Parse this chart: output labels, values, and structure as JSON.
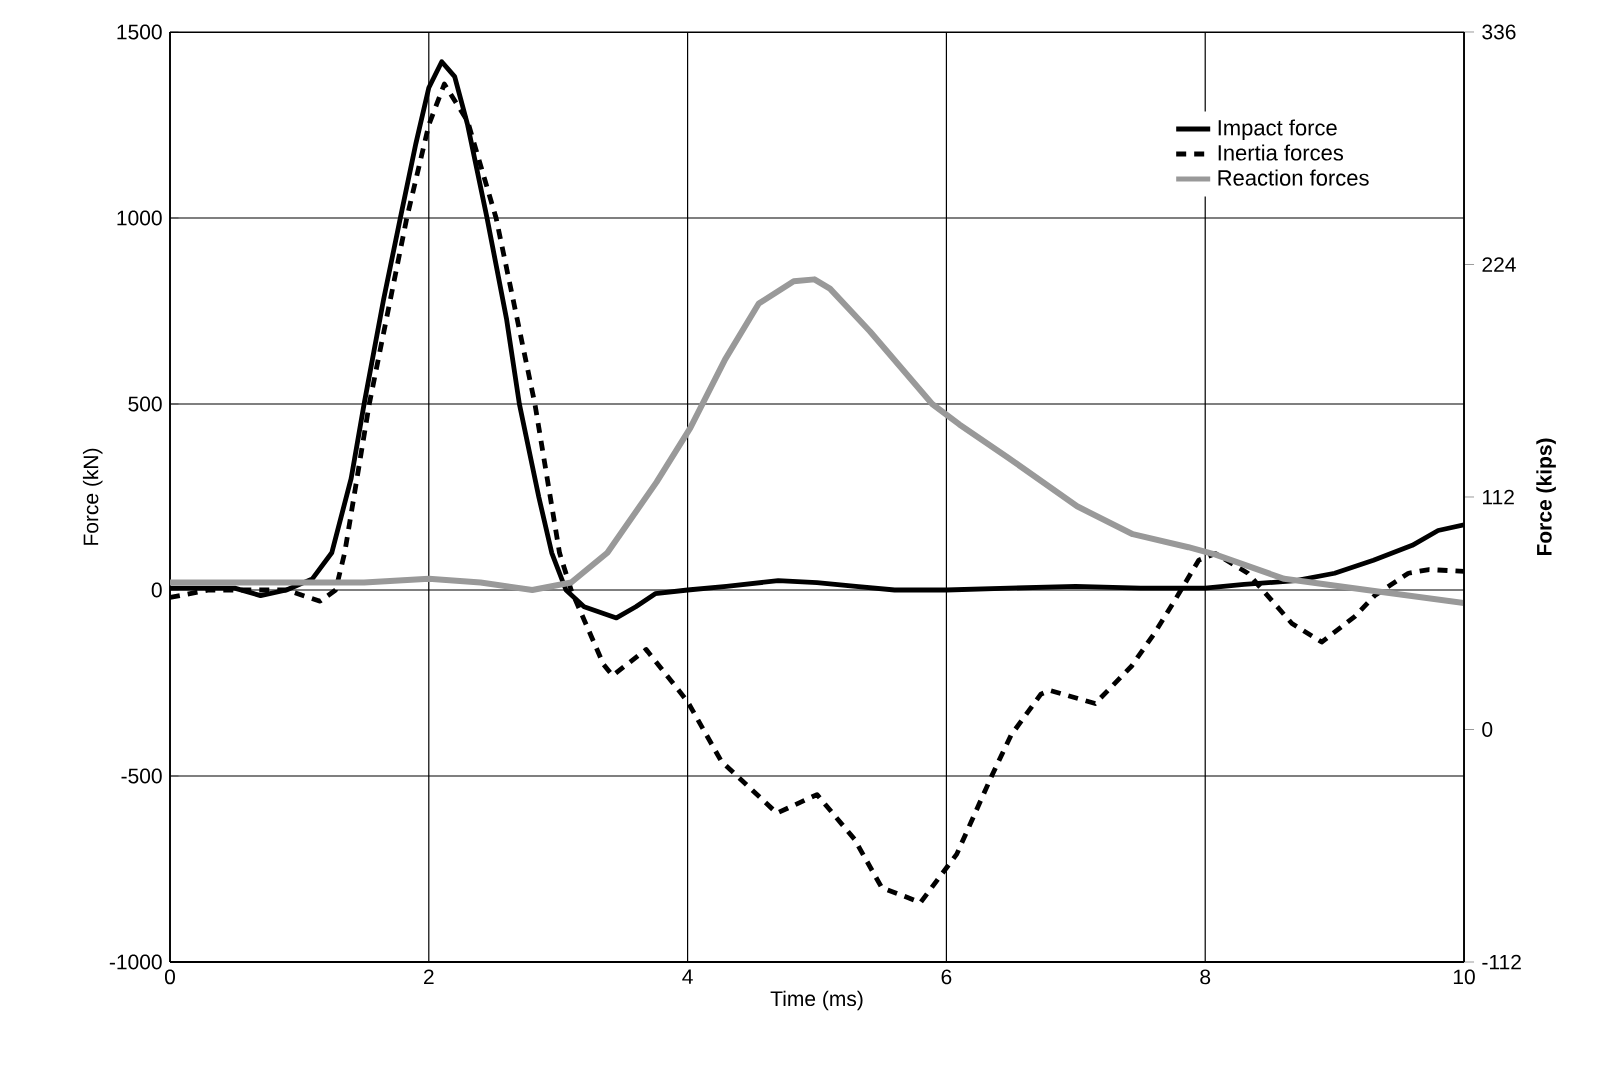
{
  "chart_data": {
    "type": "line",
    "xlabel": "Time (ms)",
    "ylabel": "Force (kN)",
    "y2label": "Force (kips)",
    "xlim": [
      0,
      10
    ],
    "xticks": [
      0,
      2,
      4,
      6,
      8,
      10
    ],
    "ylim": [
      -1000,
      1500
    ],
    "yticks": [
      -1000,
      -500,
      0,
      500,
      1000,
      1500
    ],
    "y2lim": [
      -112,
      336
    ],
    "y2ticks": [
      -112,
      0,
      112,
      224,
      336
    ],
    "grid": true,
    "legend": "top right",
    "series": [
      {
        "name": "Impact force",
        "color": "#000000",
        "line_style": "solid",
        "x": [
          0,
          0.5,
          0.7,
          0.9,
          1.1,
          1.25,
          1.4,
          1.5,
          1.65,
          1.78,
          1.9,
          2.0,
          2.1,
          2.2,
          2.3,
          2.45,
          2.6,
          2.7,
          2.85,
          2.95,
          3.06,
          3.2,
          3.45,
          3.6,
          3.75,
          4.0,
          4.3,
          4.7,
          5.0,
          5.3,
          5.6,
          6.0,
          6.5,
          7.0,
          7.5,
          8.0,
          8.3,
          8.7,
          9.0,
          9.3,
          9.6,
          9.8,
          10
        ],
        "values": [
          5,
          5,
          -15,
          0,
          30,
          100,
          300,
          500,
          780,
          1000,
          1200,
          1350,
          1420,
          1380,
          1250,
          1000,
          730,
          500,
          250,
          100,
          0,
          -45,
          -75,
          -45,
          -10,
          0,
          10,
          25,
          20,
          10,
          0,
          0,
          5,
          10,
          5,
          5,
          15,
          25,
          45,
          80,
          120,
          160,
          175
        ]
      },
      {
        "name": "Inertia forces",
        "color": "#000000",
        "line_style": "dashed",
        "x": [
          0,
          0.3,
          0.9,
          1.16,
          1.28,
          1.35,
          1.54,
          1.83,
          2.0,
          2.12,
          2.3,
          2.52,
          2.82,
          3.01,
          3.1,
          3.35,
          3.42,
          3.68,
          4.0,
          4.26,
          4.69,
          5.0,
          5.29,
          5.5,
          5.8,
          6.08,
          6.35,
          6.5,
          6.73,
          6.8,
          7.15,
          7.43,
          7.61,
          7.77,
          7.95,
          8.08,
          8.33,
          8.67,
          8.9,
          9.16,
          9.31,
          9.57,
          9.73,
          10
        ],
        "values": [
          -20,
          0,
          0,
          -30,
          0,
          100,
          500,
          1000,
          1250,
          1360,
          1260,
          1000,
          500,
          100,
          0,
          -200,
          -230,
          -160,
          -300,
          -460,
          -600,
          -550,
          -670,
          -800,
          -840,
          -710,
          -500,
          -390,
          -280,
          -270,
          -305,
          -205,
          -115,
          -25,
          80,
          98,
          45,
          -90,
          -140,
          -70,
          -15,
          45,
          55,
          50
        ]
      },
      {
        "name": "Reaction forces",
        "color": "#999999",
        "line_style": "solid",
        "x": [
          0,
          1.0,
          1.5,
          2.0,
          2.4,
          2.8,
          3.1,
          3.38,
          3.76,
          4.02,
          4.29,
          4.55,
          4.82,
          4.98,
          5.1,
          5.41,
          5.89,
          6.1,
          6.48,
          7.01,
          7.44,
          7.87,
          8.08,
          8.61,
          9.25,
          10
        ],
        "values": [
          20,
          20,
          20,
          30,
          20,
          0,
          20,
          100,
          290,
          435,
          620,
          770,
          830,
          835,
          810,
          695,
          500,
          445,
          355,
          225,
          150,
          115,
          95,
          30,
          0,
          -35
        ]
      }
    ]
  }
}
